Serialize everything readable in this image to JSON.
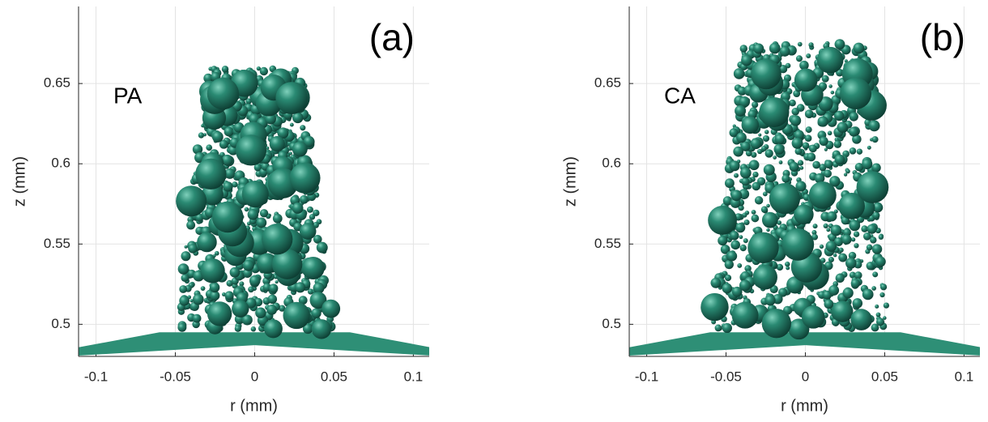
{
  "chart_data": [
    {
      "type": "particles",
      "annotation": "(a)",
      "label": "PA",
      "xlabel": "r (mm)",
      "ylabel": "z (mm)",
      "xlim": [
        -0.111,
        0.11
      ],
      "ylim": [
        0.48,
        0.698
      ],
      "xticks": [
        -0.1,
        -0.05,
        0,
        0.05,
        0.1
      ],
      "yticks": [
        0.5,
        0.55,
        0.6,
        0.65
      ],
      "grid": true,
      "color": "#1f6f5f"
    },
    {
      "type": "particles",
      "annotation": "(b)",
      "label": "CA",
      "xlabel": "r (mm)",
      "ylabel": "z (mm)",
      "xlim": [
        -0.111,
        0.11
      ],
      "ylim": [
        0.48,
        0.698
      ],
      "xticks": [
        -0.1,
        -0.05,
        0,
        0.05,
        0.1
      ],
      "yticks": [
        0.5,
        0.55,
        0.6,
        0.65
      ],
      "grid": true,
      "color": "#1f6f5f"
    }
  ]
}
